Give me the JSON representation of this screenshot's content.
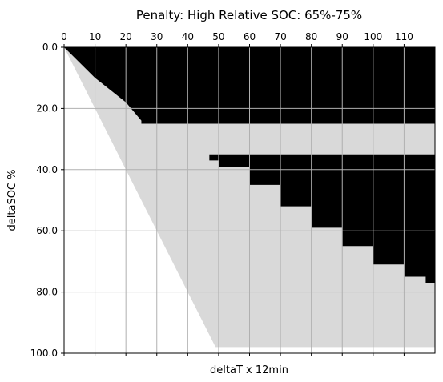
{
  "chart_data": {
    "type": "heatmap",
    "title": "Penalty: High Relative SOC: 65%-75%",
    "xlabel": "deltaT x 12min",
    "ylabel": "deltaSOC %",
    "x_ticks": [
      "0",
      "10",
      "20",
      "30",
      "40",
      "50",
      "60",
      "70",
      "80",
      "90",
      "100",
      "110"
    ],
    "x_tick_values": [
      0,
      10,
      20,
      30,
      40,
      50,
      60,
      70,
      80,
      90,
      100,
      110
    ],
    "y_ticks": [
      "0.0",
      "20.0",
      "40.0",
      "60.0",
      "80.0",
      "100.0"
    ],
    "y_tick_values": [
      0,
      20,
      40,
      60,
      80,
      100
    ],
    "xlim": [
      0,
      120
    ],
    "ylim": [
      100,
      0
    ],
    "grid": true,
    "x_tick_labels_position": "top",
    "colors": {
      "background": "#ffffff",
      "penalty": "#000000",
      "feasible": "#d9d9d9",
      "grid": "#b0b0b0"
    },
    "regions": {
      "white_boundary_x_at_soc_0": 0,
      "white_boundary_x_at_soc_100": 50,
      "white_boundary_slope_dsoc_per_dt": 2.0,
      "white_cutoff_soc": 98,
      "upper_black_boundary": [
        [
          0,
          0
        ],
        [
          10,
          10
        ],
        [
          20,
          18
        ],
        [
          25,
          24
        ]
      ],
      "upper_black_band_soc": [
        0,
        25
      ],
      "gray_band_soc": [
        25,
        35
      ],
      "lower_black_boundary": [
        [
          44,
          35
        ],
        [
          47,
          37
        ],
        [
          50,
          39
        ],
        [
          60,
          45
        ],
        [
          70,
          52
        ],
        [
          80,
          59
        ],
        [
          90,
          65
        ],
        [
          100,
          71
        ],
        [
          110,
          75
        ],
        [
          117,
          77
        ],
        [
          120,
          77
        ]
      ],
      "lower_black_band_soc_start": 35,
      "lower_black_x_start": 44
    }
  }
}
